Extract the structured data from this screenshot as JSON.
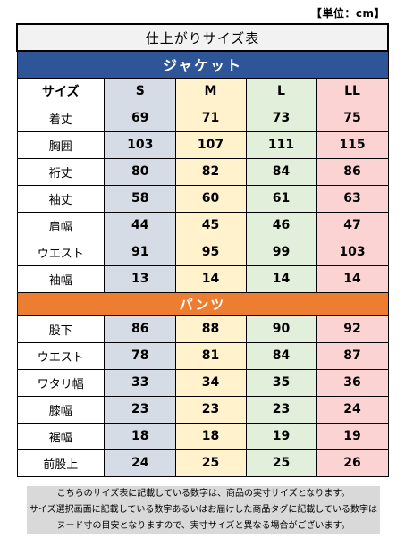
{
  "unit_label": "【単位：cm】",
  "table_title": "仕上がりサイズ表",
  "size_header_label": "サイズ",
  "sizes": [
    "S",
    "M",
    "L",
    "LL"
  ],
  "jacket": {
    "section_title": "ジャケット",
    "rows": [
      {
        "label": "着丈",
        "values": [
          "69",
          "71",
          "73",
          "75"
        ]
      },
      {
        "label": "胸囲",
        "values": [
          "103",
          "107",
          "111",
          "115"
        ]
      },
      {
        "label": "裄丈",
        "values": [
          "80",
          "82",
          "84",
          "86"
        ]
      },
      {
        "label": "袖丈",
        "values": [
          "58",
          "60",
          "61",
          "63"
        ]
      },
      {
        "label": "肩幅",
        "values": [
          "44",
          "45",
          "46",
          "47"
        ]
      },
      {
        "label": "ウエスト",
        "values": [
          "91",
          "95",
          "99",
          "103"
        ]
      },
      {
        "label": "袖幅",
        "values": [
          "13",
          "14",
          "14",
          "14"
        ]
      }
    ]
  },
  "pants": {
    "section_title": "パンツ",
    "rows": [
      {
        "label": "股下",
        "values": [
          "86",
          "88",
          "90",
          "92"
        ]
      },
      {
        "label": "ウエスト",
        "values": [
          "78",
          "81",
          "84",
          "87"
        ]
      },
      {
        "label": "ワタリ幅",
        "values": [
          "33",
          "34",
          "35",
          "36"
        ]
      },
      {
        "label": "膝幅",
        "values": [
          "23",
          "23",
          "23",
          "24"
        ]
      },
      {
        "label": "裾幅",
        "values": [
          "18",
          "18",
          "19",
          "19"
        ]
      },
      {
        "label": "前股上",
        "values": [
          "24",
          "25",
          "25",
          "26"
        ]
      }
    ]
  },
  "note_lines": [
    "こちらのサイズ表に記載している数字は、商品の実寸サイズとなります。",
    "サイズ選択画面に記載している数字あるいはお届けした商品タグに記載している数字は",
    "ヌード寸の目安となりますので、実寸サイズと異なる場合がございます。"
  ],
  "colors": {
    "jacket_header": "#2e5597",
    "pants_header": "#ed7d31",
    "size_s": "#d6dce5",
    "size_m": "#fff2cc",
    "size_l": "#e2efda",
    "size_ll": "#fbd3d3",
    "note_bg": "#d9d9d9"
  }
}
